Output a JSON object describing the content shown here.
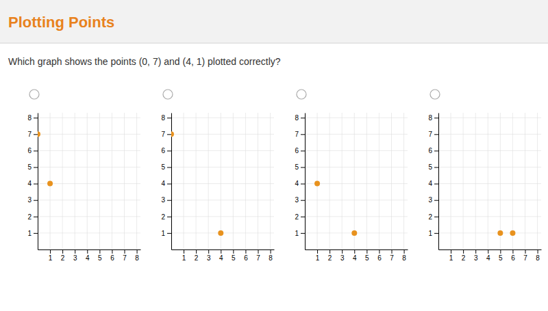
{
  "chart_data": [
    {
      "type": "scatter",
      "title": "Plotting Points",
      "subtitle": "Which graph shows the points (0, 7) and (4, 1) plotted correctly?",
      "x": [
        0,
        1
      ],
      "values": [
        7,
        4
      ],
      "color": "#E8921E",
      "xlim": [
        0,
        8.3
      ],
      "ylim": [
        0,
        8.3
      ],
      "xticks": [
        1,
        2,
        3,
        4,
        5,
        6,
        7,
        8
      ],
      "yticks": [
        1,
        2,
        3,
        4,
        5,
        6,
        7,
        8
      ],
      "grid": true
    },
    {
      "type": "scatter",
      "x": [
        0,
        4
      ],
      "values": [
        7,
        1
      ],
      "color": "#E8921E",
      "xlim": [
        0,
        8.3
      ],
      "ylim": [
        0,
        8.3
      ],
      "xticks": [
        1,
        2,
        3,
        4,
        5,
        6,
        7,
        8
      ],
      "yticks": [
        1,
        2,
        3,
        4,
        5,
        6,
        7,
        8
      ],
      "grid": true
    },
    {
      "type": "scatter",
      "x": [
        1,
        4
      ],
      "values": [
        4,
        1
      ],
      "color": "#E8921E",
      "xlim": [
        0,
        8.3
      ],
      "ylim": [
        0,
        8.3
      ],
      "xticks": [
        1,
        2,
        3,
        4,
        5,
        6,
        7,
        8
      ],
      "yticks": [
        1,
        2,
        3,
        4,
        5,
        6,
        7,
        8
      ],
      "grid": true
    },
    {
      "type": "scatter",
      "x": [
        5,
        6
      ],
      "values": [
        1,
        1
      ],
      "color": "#E8921E",
      "xlim": [
        0,
        8.3
      ],
      "ylim": [
        0,
        8.3
      ],
      "xticks": [
        1,
        2,
        3,
        4,
        5,
        6,
        7,
        8
      ],
      "yticks": [
        1,
        2,
        3,
        4,
        5,
        6,
        7,
        8
      ],
      "grid": true
    }
  ]
}
